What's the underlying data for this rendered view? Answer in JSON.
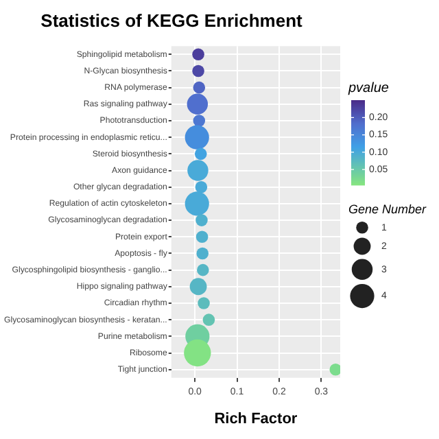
{
  "chart_data": {
    "type": "bubble",
    "title": "Statistics of KEGG Enrichment",
    "xlabel": "Rich Factor",
    "clabel": "pvalue",
    "legend_title": "Gene Number",
    "categories": [
      "Sphingolipid metabolism",
      "N-Glycan biosynthesis",
      "RNA polymerase",
      "Ras signaling pathway",
      "Phototransduction",
      "Protein processing in endoplasmic reticu...",
      "Steroid biosynthesis",
      "Axon guidance",
      "Other glycan degradation",
      "Regulation of actin cytoskeleton",
      "Glycosaminoglycan degradation",
      "Protein export",
      "Apoptosis - fly",
      "Glycosphingolipid biosynthesis - ganglio...",
      "Hippo signaling pathway",
      "Circadian rhythm",
      "Glycosaminoglycan biosynthesis - keratan...",
      "Purine metabolism",
      "Ribosome",
      "Tight junction"
    ],
    "values": [
      0.008,
      0.008,
      0.01,
      0.006,
      0.01,
      0.005,
      0.014,
      0.007,
      0.015,
      0.005,
      0.016,
      0.017,
      0.018,
      0.019,
      0.008,
      0.021,
      0.033,
      0.006,
      0.006,
      0.334
    ],
    "sizes": [
      1,
      1,
      1,
      3,
      1,
      4,
      1,
      3,
      1,
      4,
      1,
      1,
      1,
      1,
      2,
      1,
      1,
      4,
      5,
      1
    ],
    "cvalues": [
      0.23,
      0.22,
      0.19,
      0.18,
      0.17,
      0.14,
      0.11,
      0.1,
      0.1,
      0.1,
      0.09,
      0.09,
      0.09,
      0.08,
      0.08,
      0.07,
      0.06,
      0.04,
      0.01,
      0.02
    ],
    "clim": [
      0.005,
      0.25
    ],
    "cticks": [
      {
        "value": 0.05,
        "label": "0.05"
      },
      {
        "value": 0.1,
        "label": "0.10"
      },
      {
        "value": 0.15,
        "label": "0.15"
      },
      {
        "value": 0.2,
        "label": "0.20"
      }
    ],
    "size_legend": [
      1,
      2,
      3,
      4
    ],
    "orientation": "horizontal",
    "xlim": [
      -0.056,
      0.345
    ],
    "xticks": [
      {
        "value": 0,
        "label": "0.0"
      },
      {
        "value": 0.1,
        "label": "0.1"
      },
      {
        "value": 0.2,
        "label": "0.2"
      },
      {
        "value": 0.3,
        "label": "0.3"
      }
    ],
    "grid": true
  }
}
